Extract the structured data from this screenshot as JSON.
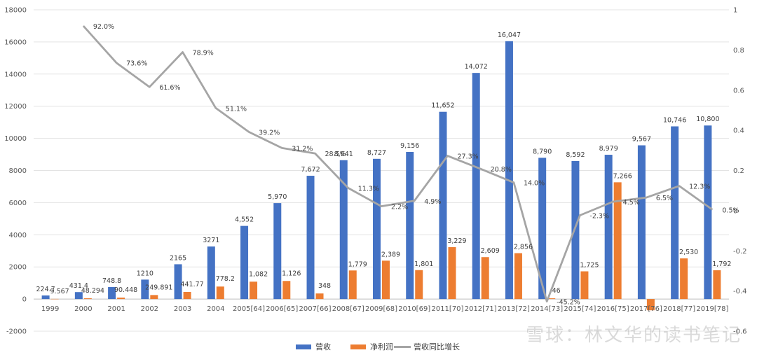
{
  "chart_data": {
    "type": "bar",
    "title": "",
    "xlabel": "",
    "ylabel": "",
    "ylim": [
      -2000,
      18000
    ],
    "y_ticks": [
      "18000",
      "16000",
      "14000",
      "12000",
      "10000",
      "8000",
      "6000",
      "4000",
      "2000",
      "0",
      "-2000"
    ],
    "y2lim": [
      -0.6,
      1.0
    ],
    "y2_ticks": [
      "1",
      "0.8",
      "0.6",
      "0.4",
      "0.2",
      "0",
      "-0.2",
      "-0.4",
      "-0.6"
    ],
    "categories": [
      "1999",
      "2000",
      "2001",
      "2002",
      "2003",
      "2004",
      "2005[64]",
      "2006[65]",
      "2007[66]",
      "2008[67]",
      "2009[68]",
      "2010[69]",
      "2011[70]",
      "2012[71]",
      "2013[72]",
      "2014[73]",
      "2015[74]",
      "2016[75]",
      "2017[76]",
      "2018[77]",
      "2019[78]"
    ],
    "series": [
      {
        "name": "营收",
        "color": "#4472C4",
        "values": [
          224.7,
          431.4,
          748.8,
          1210,
          2165,
          3271,
          4552,
          5970,
          7672,
          8641,
          8727,
          9156,
          11652,
          14072,
          16047,
          8790,
          8592,
          8979,
          9567,
          10746,
          10800
        ],
        "labels": [
          "224.7",
          "431.4",
          "748.8",
          "1210",
          "2165",
          "3271",
          "4,552",
          "5,970",
          "7,672",
          "8,641",
          "8,727",
          "9,156",
          "11,652",
          "14,072",
          "16,047",
          "8,790",
          "8,592",
          "8,979",
          "9,567",
          "10,746",
          "10,800"
        ]
      },
      {
        "name": "净利润",
        "color": "#ED7D31",
        "values": [
          9.567,
          48.294,
          90.448,
          249.891,
          441.77,
          778.2,
          1082,
          1126,
          348,
          1779,
          2389,
          1801,
          3229,
          2609,
          2856,
          46,
          1725,
          7266,
          -700,
          2530,
          1792
        ],
        "labels": [
          "9.567",
          "48.294",
          "90.448",
          "249.891",
          "441.77",
          "778.2",
          "1,082",
          "1,126",
          "348",
          "1,779",
          "2,389",
          "1,801",
          "3,229",
          "2,609",
          "2,856",
          "46",
          "1,725",
          "7,266",
          "",
          "2,530",
          "1,792"
        ]
      },
      {
        "name": "营收同比增长",
        "color": "#A5A5A5",
        "axis": "secondary",
        "values": [
          null,
          0.92,
          0.736,
          0.616,
          0.789,
          0.511,
          0.392,
          0.312,
          0.285,
          0.113,
          0.022,
          0.049,
          0.273,
          0.208,
          0.14,
          -0.452,
          -0.023,
          0.045,
          0.065,
          0.123,
          0.005
        ],
        "labels": [
          "",
          "92.0%",
          "73.6%",
          "61.6%",
          "78.9%",
          "51.1%",
          "39.2%",
          "31.2%",
          "28.5%",
          "11.3%",
          "2.2%",
          "4.9%",
          "27.3%",
          "20.8%",
          "14.0%",
          "-45.2%",
          "-2.3%",
          "4.5%",
          "6.5%",
          "12.3%",
          "0.5%"
        ]
      }
    ],
    "legend_position": "bottom"
  },
  "watermark": "雪球：林文华的读书笔记"
}
